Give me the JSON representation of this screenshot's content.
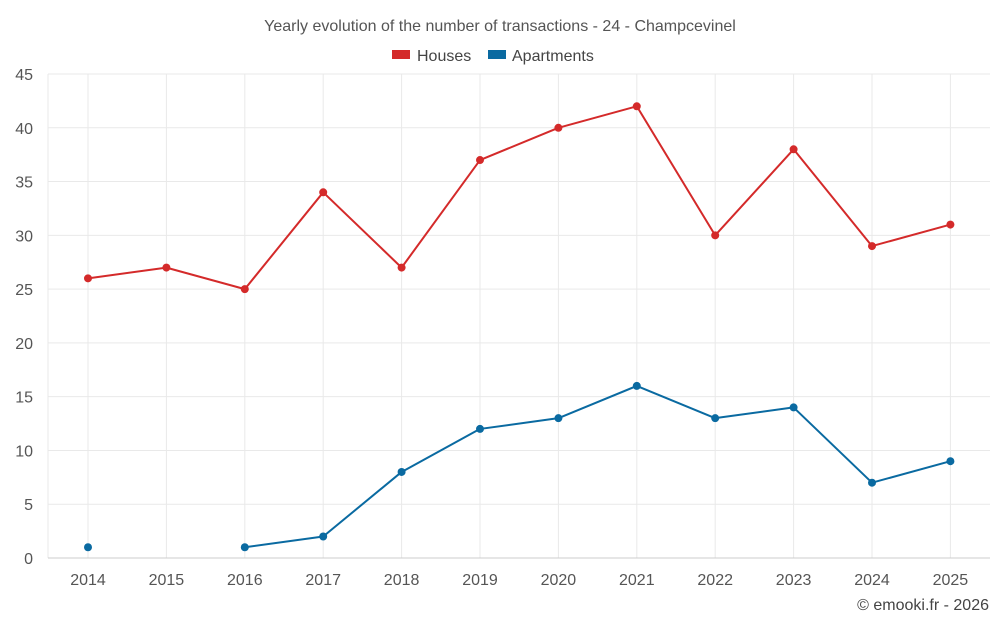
{
  "chart_data": {
    "type": "line",
    "title": "Yearly evolution of the number of transactions - 24 - Champcevinel",
    "categories": [
      "2014",
      "2015",
      "2016",
      "2017",
      "2018",
      "2019",
      "2020",
      "2021",
      "2022",
      "2023",
      "2024",
      "2025"
    ],
    "series": [
      {
        "name": "Houses",
        "color": "#d42a2a",
        "values": [
          26,
          27,
          25,
          34,
          27,
          37,
          40,
          42,
          30,
          38,
          29,
          31
        ]
      },
      {
        "name": "Apartments",
        "color": "#0a6aa1",
        "values": [
          1,
          null,
          1,
          2,
          8,
          12,
          13,
          16,
          13,
          14,
          7,
          9
        ]
      }
    ],
    "ylim": [
      0,
      45
    ],
    "yticks": [
      0,
      5,
      10,
      15,
      20,
      25,
      30,
      35,
      40,
      45
    ],
    "grid": true,
    "legend_position": "top-center",
    "xlabel": "",
    "ylabel": ""
  },
  "credit": "© emooki.fr - 2026"
}
